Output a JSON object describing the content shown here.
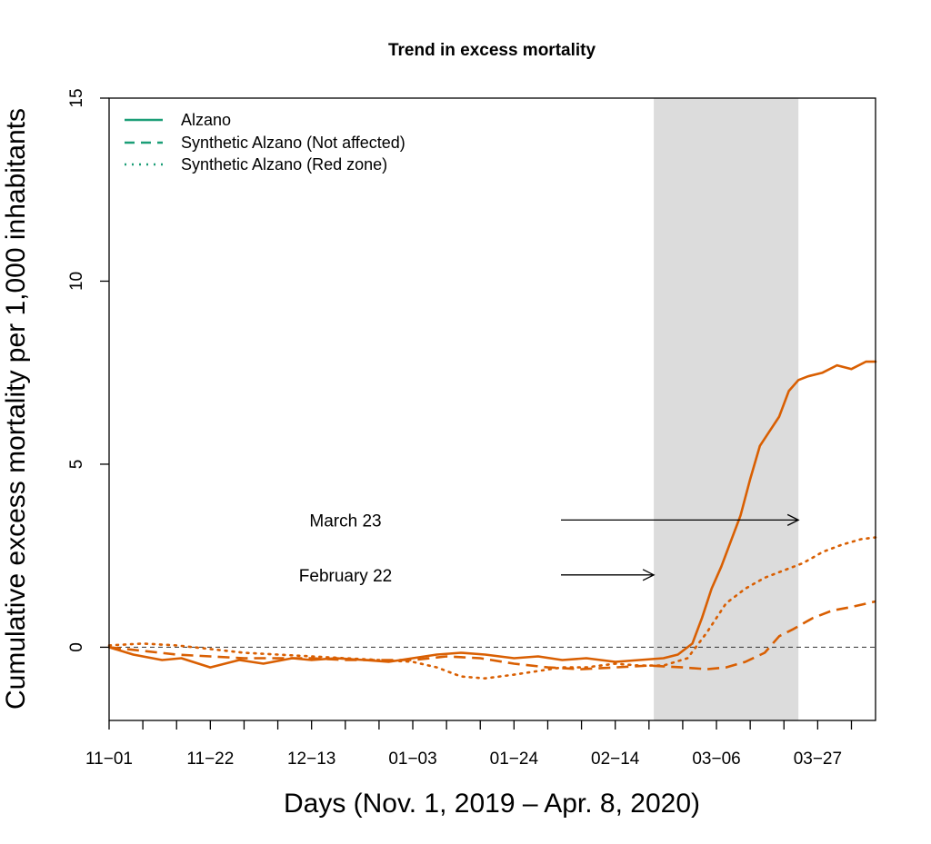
{
  "chart_data": {
    "type": "line",
    "title": "Trend in excess mortality",
    "xlabel": "Days (Nov. 1, 2019 – Apr. 8, 2020)",
    "ylabel": "Cumulative excess mortality per 1,000 inhabitants",
    "xlim": [
      "2019-11-01",
      "2020-04-08"
    ],
    "ylim": [
      -2,
      15
    ],
    "y_ticks": [
      0,
      5,
      10,
      15
    ],
    "y_tick_labels": [
      "0",
      "5",
      "10",
      "15"
    ],
    "x_ticks": [
      "2019-11-01",
      "2019-11-22",
      "2019-12-13",
      "2020-01-03",
      "2020-01-24",
      "2020-02-14",
      "2020-03-06",
      "2020-03-27"
    ],
    "x_tick_labels": [
      "11−01",
      "11−22",
      "12−13",
      "01−03",
      "01−24",
      "02−14",
      "03−06",
      "03−27"
    ],
    "grid": false,
    "legend_position": "top-left",
    "reference_line": {
      "y": 0,
      "style": "dashed",
      "color": "#333333"
    },
    "shaded_region": {
      "x": [
        "2020-02-22",
        "2020-03-23"
      ],
      "color": "#dcdcdc"
    },
    "annotations": [
      {
        "text": "March 23",
        "arrow_to_x": "2020-03-23",
        "y": 3.5
      },
      {
        "text": "February 22",
        "arrow_to_x": "2020-02-22",
        "y": 2.0
      }
    ],
    "series": [
      {
        "name": "Alzano",
        "style": "solid",
        "legend_color": "#1b9e77",
        "line_color": "#d95f02",
        "x": [
          "2019-11-01",
          "2019-11-06",
          "2019-11-12",
          "2019-11-16",
          "2019-11-22",
          "2019-11-28",
          "2019-12-03",
          "2019-12-09",
          "2019-12-13",
          "2019-12-18",
          "2019-12-24",
          "2019-12-29",
          "2020-01-03",
          "2020-01-08",
          "2020-01-13",
          "2020-01-18",
          "2020-01-24",
          "2020-01-29",
          "2020-02-03",
          "2020-02-08",
          "2020-02-14",
          "2020-02-19",
          "2020-02-24",
          "2020-02-27",
          "2020-03-01",
          "2020-03-03",
          "2020-03-05",
          "2020-03-07",
          "2020-03-09",
          "2020-03-11",
          "2020-03-13",
          "2020-03-15",
          "2020-03-17",
          "2020-03-19",
          "2020-03-21",
          "2020-03-23",
          "2020-03-25",
          "2020-03-28",
          "2020-03-31",
          "2020-04-03",
          "2020-04-06",
          "2020-04-08"
        ],
        "values": [
          0,
          -0.2,
          -0.35,
          -0.3,
          -0.55,
          -0.35,
          -0.45,
          -0.3,
          -0.35,
          -0.3,
          -0.35,
          -0.4,
          -0.3,
          -0.2,
          -0.15,
          -0.2,
          -0.3,
          -0.25,
          -0.35,
          -0.3,
          -0.4,
          -0.35,
          -0.3,
          -0.2,
          0.1,
          0.8,
          1.6,
          2.2,
          2.9,
          3.6,
          4.6,
          5.5,
          5.9,
          6.3,
          7.0,
          7.3,
          7.4,
          7.5,
          7.7,
          7.6,
          7.8,
          7.8
        ]
      },
      {
        "name": "Synthetic Alzano (Not affected)",
        "style": "dashed",
        "legend_color": "#1b9e77",
        "line_color": "#d95f02",
        "x": [
          "2019-11-01",
          "2019-11-08",
          "2019-11-15",
          "2019-11-22",
          "2019-11-29",
          "2019-12-06",
          "2019-12-13",
          "2019-12-20",
          "2019-12-27",
          "2020-01-03",
          "2020-01-10",
          "2020-01-17",
          "2020-01-24",
          "2020-01-31",
          "2020-02-07",
          "2020-02-14",
          "2020-02-21",
          "2020-02-28",
          "2020-03-04",
          "2020-03-08",
          "2020-03-12",
          "2020-03-16",
          "2020-03-19",
          "2020-03-22",
          "2020-03-26",
          "2020-03-30",
          "2020-04-03",
          "2020-04-08"
        ],
        "values": [
          0,
          -0.1,
          -0.2,
          -0.25,
          -0.3,
          -0.3,
          -0.3,
          -0.35,
          -0.35,
          -0.35,
          -0.25,
          -0.3,
          -0.45,
          -0.55,
          -0.6,
          -0.55,
          -0.5,
          -0.55,
          -0.6,
          -0.55,
          -0.4,
          -0.15,
          0.3,
          0.5,
          0.8,
          1.0,
          1.1,
          1.25
        ]
      },
      {
        "name": "Synthetic Alzano (Red zone)",
        "style": "dotted",
        "legend_color": "#1b9e77",
        "line_color": "#d95f02",
        "x": [
          "2019-11-01",
          "2019-11-08",
          "2019-11-15",
          "2019-11-22",
          "2019-11-29",
          "2019-12-06",
          "2019-12-13",
          "2019-12-20",
          "2019-12-27",
          "2020-01-03",
          "2020-01-08",
          "2020-01-13",
          "2020-01-18",
          "2020-01-24",
          "2020-01-29",
          "2020-02-03",
          "2020-02-08",
          "2020-02-14",
          "2020-02-19",
          "2020-02-24",
          "2020-02-29",
          "2020-03-04",
          "2020-03-08",
          "2020-03-12",
          "2020-03-16",
          "2020-03-20",
          "2020-03-24",
          "2020-03-28",
          "2020-04-01",
          "2020-04-05",
          "2020-04-08"
        ],
        "values": [
          0.05,
          0.1,
          0.05,
          -0.05,
          -0.15,
          -0.2,
          -0.25,
          -0.3,
          -0.35,
          -0.4,
          -0.55,
          -0.8,
          -0.85,
          -0.75,
          -0.65,
          -0.55,
          -0.55,
          -0.45,
          -0.5,
          -0.5,
          -0.3,
          0.4,
          1.2,
          1.6,
          1.9,
          2.1,
          2.3,
          2.6,
          2.8,
          2.95,
          3.0
        ]
      }
    ]
  }
}
